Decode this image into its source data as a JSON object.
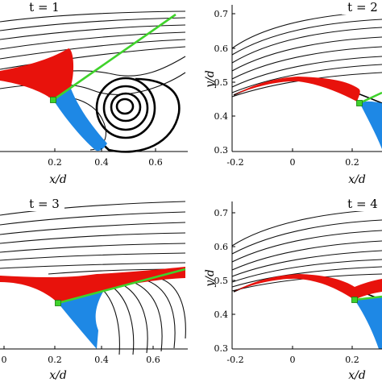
{
  "figure": {
    "panels": [
      {
        "id": "p1",
        "title": "t = 1",
        "xlabel": "x/d",
        "ylabel": "",
        "x_ticks": [
          "0.2",
          "0.4",
          "0.6"
        ],
        "y_ticks": []
      },
      {
        "id": "p2",
        "title": "t = 2",
        "xlabel": "x/d",
        "ylabel": "y/d",
        "x_ticks": [
          "-0.2",
          "0",
          "0.2"
        ],
        "y_ticks": [
          "0.7",
          "0.6",
          "0.5",
          "0.4",
          "0.3"
        ]
      },
      {
        "id": "p3",
        "title": "t = 3",
        "xlabel": "x/d",
        "ylabel": "",
        "x_ticks": [
          "0",
          "0.2",
          "0.4",
          "0.6"
        ],
        "y_ticks": []
      },
      {
        "id": "p4",
        "title": "t = 4",
        "xlabel": "x/d",
        "ylabel": "y/d",
        "x_ticks": [
          "-0.2",
          "0",
          "0.2"
        ],
        "y_ticks": [
          "0.7",
          "0.6",
          "0.5",
          "0.4",
          "0.3"
        ]
      }
    ],
    "colors": {
      "streamline": "#111111",
      "red_region": "#e8120c",
      "blue_region": "#1e88e5",
      "green_line": "#3fd22b",
      "green_marker": "#3fd22b"
    }
  }
}
